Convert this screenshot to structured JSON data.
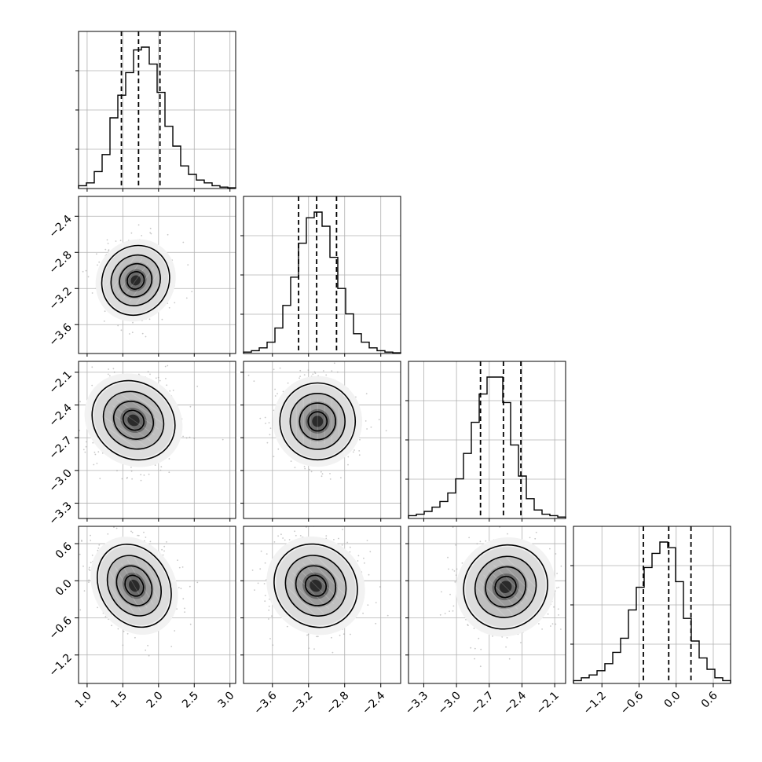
{
  "chart_data": {
    "type": "corner",
    "parameters": [
      {
        "xticks": [
          1.0,
          1.5,
          2.0,
          2.5,
          3.0
        ],
        "yticks": [
          -3.6,
          -3.2,
          -2.8,
          -2.4
        ],
        "range": [
          0.88,
          3.08
        ],
        "quantiles": [
          1.48,
          1.72,
          2.02
        ]
      },
      {
        "xticks": [
          -3.6,
          -3.2,
          -2.8,
          -2.4
        ],
        "yticks": [
          -3.3,
          -3.0,
          -2.7,
          -2.4,
          -2.1
        ],
        "range": [
          -3.92,
          -2.18
        ],
        "quantiles": [
          -3.31,
          -3.11,
          -2.89
        ]
      },
      {
        "xticks": [
          -3.3,
          -3.0,
          -2.7,
          -2.4,
          -2.1
        ],
        "yticks": [
          -1.2,
          -0.6,
          0.0,
          0.6
        ],
        "range": [
          -3.44,
          -2.0
        ],
        "quantiles": [
          -2.78,
          -2.57,
          -2.41
        ]
      },
      {
        "xticks": [
          -1.2,
          -0.6,
          0.0,
          0.6
        ],
        "yticks": [],
        "range": [
          -1.66,
          0.88
        ],
        "quantiles": [
          -0.53,
          -0.12,
          0.24
        ]
      }
    ],
    "tick_labels": {
      "x": [
        [
          "1.0",
          "1.5",
          "2.0",
          "2.5",
          "3.0"
        ],
        [
          "−3.6",
          "−3.2",
          "−2.8",
          "−2.4"
        ],
        [
          "−3.3",
          "−3.0",
          "−2.7",
          "−2.4",
          "−2.1"
        ],
        [
          "−1.2",
          "−0.6",
          "0.0",
          "0.6"
        ]
      ],
      "y": [
        [],
        [
          "−3.6",
          "−3.2",
          "−2.8",
          "−2.4"
        ],
        [
          "−3.3",
          "−3.0",
          "−2.7",
          "−2.4",
          "−2.1"
        ],
        [
          "−1.2",
          "−0.6",
          "0.0",
          "0.6"
        ]
      ]
    },
    "histograms": [
      [
        0.02,
        0.04,
        0.12,
        0.24,
        0.5,
        0.66,
        0.82,
        0.98,
        1.0,
        0.88,
        0.68,
        0.44,
        0.3,
        0.16,
        0.1,
        0.06,
        0.04,
        0.02,
        0.01,
        0.005
      ],
      [
        0.01,
        0.02,
        0.04,
        0.08,
        0.18,
        0.34,
        0.54,
        0.78,
        0.96,
        1.0,
        0.9,
        0.68,
        0.46,
        0.28,
        0.14,
        0.08,
        0.04,
        0.02,
        0.01,
        0.005
      ],
      [
        0.02,
        0.03,
        0.05,
        0.08,
        0.12,
        0.18,
        0.28,
        0.46,
        0.68,
        0.88,
        1.0,
        1.0,
        0.82,
        0.52,
        0.3,
        0.14,
        0.06,
        0.03,
        0.02,
        0.01
      ],
      [
        0.02,
        0.04,
        0.06,
        0.09,
        0.14,
        0.22,
        0.32,
        0.52,
        0.68,
        0.82,
        0.92,
        1.0,
        0.96,
        0.72,
        0.46,
        0.3,
        0.18,
        0.1,
        0.04,
        0.02
      ]
    ],
    "joint_2d": [
      {
        "x": 1,
        "y": 0,
        "center": [
          1.68,
          -3.11
        ],
        "sd": [
          0.21,
          0.18
        ],
        "angle": 35
      },
      {
        "x": 2,
        "y": 0,
        "center": [
          1.65,
          -2.54
        ],
        "sd": [
          0.24,
          0.18
        ],
        "angle": -55
      },
      {
        "x": 2,
        "y": 1,
        "center": [
          -3.1,
          -2.55
        ],
        "sd": [
          0.19,
          0.16
        ],
        "angle": 0
      },
      {
        "x": 3,
        "y": 0,
        "center": [
          1.66,
          -0.08
        ],
        "sd": [
          0.22,
          0.32
        ],
        "angle": -30
      },
      {
        "x": 3,
        "y": 1,
        "center": [
          -3.12,
          -0.08
        ],
        "sd": [
          0.2,
          0.32
        ],
        "angle": -45
      },
      {
        "x": 3,
        "y": 2,
        "center": [
          -2.55,
          -0.1
        ],
        "sd": [
          0.18,
          0.3
        ],
        "angle": -45
      }
    ],
    "grid": true,
    "colors": {
      "ink": "#000000",
      "grid": "#b0b0b0",
      "points": "#9a9a9a"
    }
  }
}
